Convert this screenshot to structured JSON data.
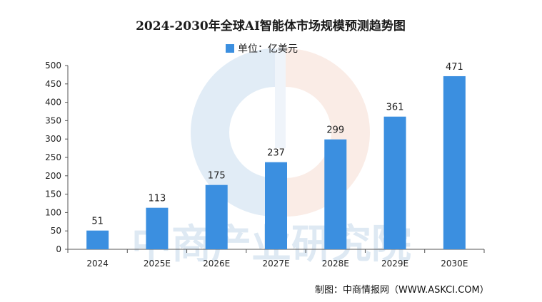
{
  "chart_data": {
    "type": "bar",
    "title": "2024-2030年全球AI智能体市场规模预测趋势图",
    "legend": {
      "label": "单位：亿美元",
      "placement": "top-center",
      "color": "#3b8fe0"
    },
    "categories": [
      "2024",
      "2025E",
      "2026E",
      "2027E",
      "2028E",
      "2029E",
      "2030E"
    ],
    "series": [
      {
        "name": "单位：亿美元",
        "values": [
          51,
          113,
          175,
          237,
          299,
          361,
          471
        ]
      }
    ],
    "data_labels": [
      "51",
      "113",
      "175",
      "237",
      "299",
      "361",
      "471"
    ],
    "ylim": [
      0,
      500
    ],
    "yticks": [
      "0",
      "50",
      "100",
      "150",
      "200",
      "250",
      "300",
      "350",
      "400",
      "450",
      "500"
    ],
    "grid": false
  },
  "source": "制图：中商情报网（WWW.ASKCI.COM）",
  "watermark": "中商产业研究院",
  "colors": {
    "bar": "#3b8fe0",
    "axis": "#555555",
    "wm_blue": "#c9dcef",
    "wm_orange": "#f6ddd2"
  }
}
